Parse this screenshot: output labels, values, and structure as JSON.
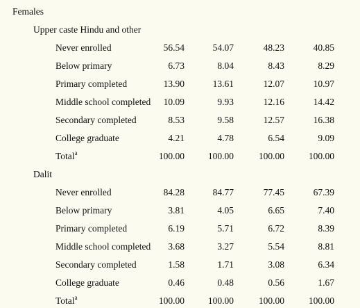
{
  "title": "Females",
  "groups": [
    {
      "name": "Upper caste Hindu and other",
      "rows": [
        {
          "label": "Never enrolled",
          "values": [
            "56.54",
            "54.07",
            "48.23",
            "40.85"
          ]
        },
        {
          "label": "Below primary",
          "values": [
            "6.73",
            "8.04",
            "8.43",
            "8.29"
          ]
        },
        {
          "label": "Primary completed",
          "values": [
            "13.90",
            "13.61",
            "12.07",
            "10.97"
          ]
        },
        {
          "label": "Middle school completed",
          "values": [
            "10.09",
            "9.93",
            "12.16",
            "14.42"
          ]
        },
        {
          "label": "Secondary completed",
          "values": [
            "8.53",
            "9.58",
            "12.57",
            "16.38"
          ]
        },
        {
          "label": "College graduate",
          "values": [
            "4.21",
            "4.78",
            "6.54",
            "9.09"
          ]
        },
        {
          "label": "Total",
          "note": "a",
          "values": [
            "100.00",
            "100.00",
            "100.00",
            "100.00"
          ]
        }
      ]
    },
    {
      "name": "Dalit",
      "rows": [
        {
          "label": "Never enrolled",
          "values": [
            "84.28",
            "84.77",
            "77.45",
            "67.39"
          ]
        },
        {
          "label": "Below primary",
          "values": [
            "3.81",
            "4.05",
            "6.65",
            "7.40"
          ]
        },
        {
          "label": "Primary completed",
          "values": [
            "6.19",
            "5.71",
            "6.72",
            "8.39"
          ]
        },
        {
          "label": "Middle school completed",
          "values": [
            "3.68",
            "3.27",
            "5.54",
            "8.81"
          ]
        },
        {
          "label": "Secondary completed",
          "values": [
            "1.58",
            "1.71",
            "3.08",
            "6.34"
          ]
        },
        {
          "label": "College graduate",
          "values": [
            "0.46",
            "0.48",
            "0.56",
            "1.67"
          ]
        },
        {
          "label": "Total",
          "note": "a",
          "values": [
            "100.00",
            "100.00",
            "100.00",
            "100.00"
          ]
        }
      ]
    }
  ]
}
